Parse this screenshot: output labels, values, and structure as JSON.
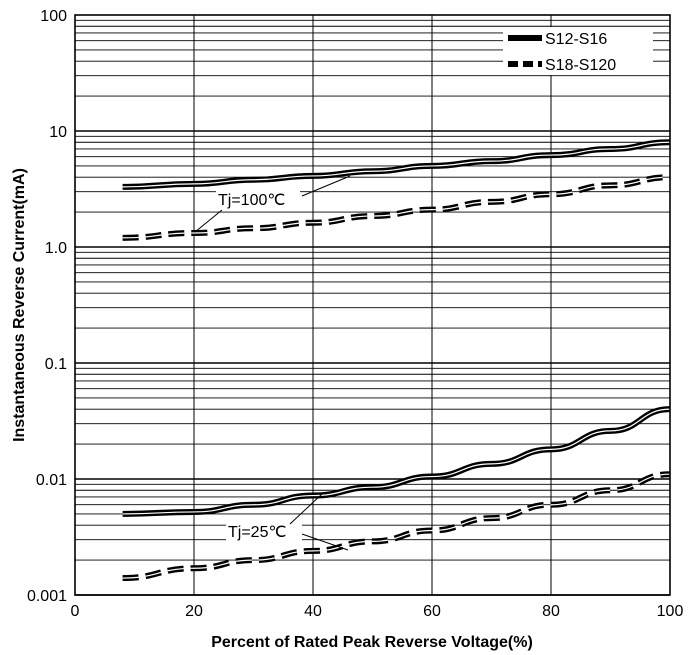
{
  "chart_data": {
    "type": "line",
    "title": "",
    "xlabel": "Percent of Rated Peak Reverse Voltage(%)",
    "ylabel": "Instantaneous Reverse Current(mA)",
    "xlim": [
      0,
      100
    ],
    "ylim": [
      0.001,
      100
    ],
    "y_scale": "log",
    "grid": true,
    "legend_position": "top-right",
    "x_ticks": [
      "0",
      "20",
      "40",
      "60",
      "80",
      "100"
    ],
    "y_ticks": [
      "0.001",
      "0.01",
      "0.1",
      "1.0",
      "10",
      "100"
    ],
    "legend": [
      {
        "label": "S12-S16",
        "style": "solid"
      },
      {
        "label": "S18-S120",
        "style": "dashed"
      }
    ],
    "annotations": [
      {
        "text": "Tj=100℃"
      },
      {
        "text": "Tj=25℃"
      }
    ],
    "series": [
      {
        "name": "S12-S16",
        "condition": "Tj=100℃",
        "style": "solid",
        "x": [
          8,
          20,
          30,
          40,
          50,
          60,
          70,
          80,
          90,
          100
        ],
        "y": [
          3.3,
          3.5,
          3.8,
          4.1,
          4.5,
          5.0,
          5.5,
          6.2,
          7.0,
          8.0
        ]
      },
      {
        "name": "S18-S120",
        "condition": "Tj=100℃",
        "style": "dashed",
        "x": [
          8,
          20,
          30,
          40,
          50,
          60,
          70,
          80,
          90,
          100
        ],
        "y": [
          1.2,
          1.32,
          1.45,
          1.62,
          1.85,
          2.1,
          2.45,
          2.85,
          3.4,
          4.0
        ]
      },
      {
        "name": "S12-S16",
        "condition": "Tj=25℃",
        "style": "solid",
        "x": [
          8,
          20,
          30,
          40,
          50,
          60,
          70,
          80,
          90,
          100
        ],
        "y": [
          0.005,
          0.0052,
          0.006,
          0.0072,
          0.0085,
          0.0105,
          0.0135,
          0.018,
          0.026,
          0.04
        ]
      },
      {
        "name": "S18-S120",
        "condition": "Tj=25℃",
        "style": "dashed",
        "x": [
          8,
          20,
          30,
          40,
          50,
          60,
          70,
          80,
          90,
          100
        ],
        "y": [
          0.0014,
          0.0017,
          0.002,
          0.0024,
          0.0029,
          0.0036,
          0.0046,
          0.006,
          0.008,
          0.011
        ]
      }
    ]
  }
}
